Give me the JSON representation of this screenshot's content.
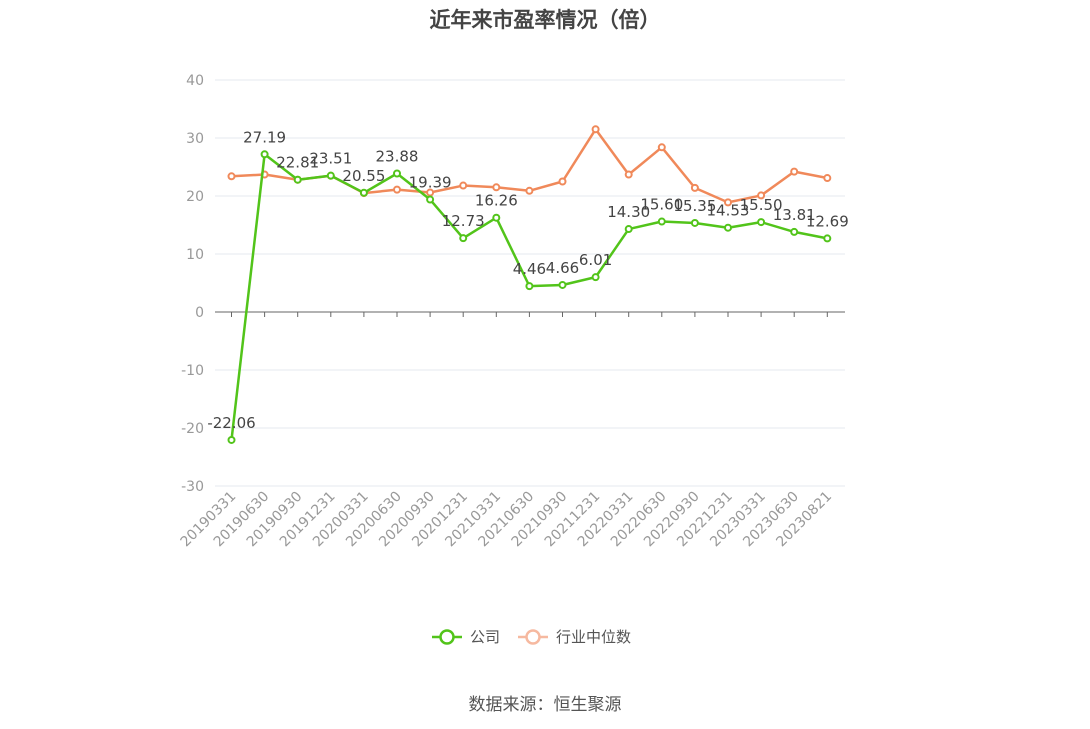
{
  "title": "近年来市盈率情况（倍）",
  "source": "数据来源：恒生聚源",
  "chart_data": {
    "type": "line",
    "categories": [
      "20190331",
      "20190630",
      "20190930",
      "20191231",
      "20200331",
      "20200630",
      "20200930",
      "20201231",
      "20210331",
      "20210630",
      "20210930",
      "20211231",
      "20220331",
      "20220630",
      "20220930",
      "20221231",
      "20230331",
      "20230630",
      "20230821"
    ],
    "ylim": [
      -30,
      40
    ],
    "yticks": [
      40,
      30,
      20,
      10,
      0,
      -10,
      -20,
      -30
    ],
    "grid": true,
    "legend_position": "bottom-center",
    "series": [
      {
        "name": "公司",
        "color": "#52c41a",
        "values": [
          -22.06,
          27.19,
          22.81,
          23.51,
          20.55,
          23.88,
          19.39,
          12.73,
          16.26,
          4.46,
          4.66,
          6.01,
          14.3,
          15.6,
          15.35,
          14.53,
          15.5,
          13.81,
          12.69
        ],
        "labels": [
          "-22.06",
          "27.19",
          "22.81",
          "23.51",
          "20.55",
          "23.88",
          "19.39",
          "12.73",
          "16.26",
          "4.46",
          "4.66",
          "6.01",
          "14.30",
          "15.60",
          "15.35",
          "14.53",
          "15.50",
          "13.81",
          "12.69"
        ]
      },
      {
        "name": "行业中位数",
        "color": "#f0895a",
        "legend_color": "#f6b9a0",
        "values": [
          23.4,
          23.7,
          22.8,
          23.5,
          20.5,
          21.1,
          20.6,
          21.8,
          21.5,
          20.9,
          22.5,
          31.5,
          23.7,
          28.4,
          21.4,
          18.9,
          20.1,
          24.2,
          23.1
        ]
      }
    ]
  }
}
